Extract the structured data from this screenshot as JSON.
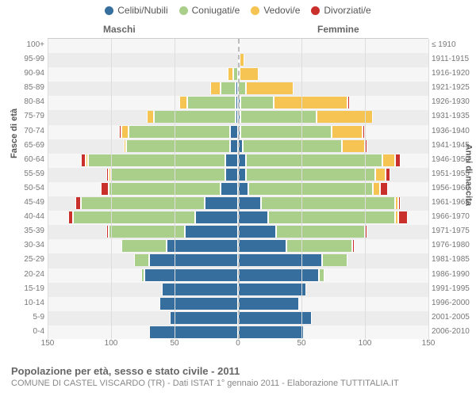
{
  "chart": {
    "type": "population-pyramid",
    "legend": [
      {
        "label": "Celibi/Nubili",
        "color": "#366f9e"
      },
      {
        "label": "Coniugati/e",
        "color": "#a9cf8a"
      },
      {
        "label": "Vedovi/e",
        "color": "#f6c453"
      },
      {
        "label": "Divorziati/e",
        "color": "#c9302c"
      }
    ],
    "headers": {
      "male": "Maschi",
      "female": "Femmine"
    },
    "ylabels": {
      "left": "Fasce di età",
      "right": "Anni di nascita"
    },
    "xaxis": {
      "ticks": [
        150,
        100,
        50,
        0,
        50,
        100,
        150
      ],
      "max": 150
    },
    "plot": {
      "background": "#f6f6f6",
      "alt_row_background": "#ececec",
      "grid_color": "#dddddd",
      "centerline_color": "#bbbbbb"
    },
    "footer": {
      "title": "Popolazione per età, sesso e stato civile - 2011",
      "subtitle": "COMUNE DI CASTEL VISCARDO (TR) - Dati ISTAT 1° gennaio 2011 - Elaborazione TUTTITALIA.IT"
    },
    "rows": [
      {
        "age": "100+",
        "birth": "≤ 1910",
        "m": [
          0,
          0,
          0,
          0
        ],
        "f": [
          0,
          0,
          1,
          0
        ]
      },
      {
        "age": "95-99",
        "birth": "1911-1915",
        "m": [
          0,
          0,
          0,
          0
        ],
        "f": [
          1,
          0,
          4,
          0
        ]
      },
      {
        "age": "90-94",
        "birth": "1916-1920",
        "m": [
          0,
          4,
          4,
          0
        ],
        "f": [
          0,
          1,
          15,
          0
        ]
      },
      {
        "age": "85-89",
        "birth": "1921-1925",
        "m": [
          2,
          12,
          8,
          0
        ],
        "f": [
          0,
          6,
          38,
          0
        ]
      },
      {
        "age": "80-84",
        "birth": "1926-1930",
        "m": [
          2,
          38,
          6,
          0
        ],
        "f": [
          2,
          26,
          58,
          2
        ]
      },
      {
        "age": "75-79",
        "birth": "1931-1935",
        "m": [
          2,
          64,
          6,
          0
        ],
        "f": [
          2,
          60,
          44,
          0
        ]
      },
      {
        "age": "70-74",
        "birth": "1936-1940",
        "m": [
          6,
          80,
          6,
          2
        ],
        "f": [
          2,
          72,
          24,
          2
        ]
      },
      {
        "age": "65-69",
        "birth": "1941-1945",
        "m": [
          6,
          82,
          2,
          0
        ],
        "f": [
          4,
          78,
          18,
          2
        ]
      },
      {
        "age": "60-64",
        "birth": "1946-1950",
        "m": [
          10,
          108,
          2,
          4
        ],
        "f": [
          6,
          108,
          10,
          4
        ]
      },
      {
        "age": "55-59",
        "birth": "1951-1955",
        "m": [
          10,
          90,
          2,
          2
        ],
        "f": [
          6,
          102,
          8,
          4
        ]
      },
      {
        "age": "50-54",
        "birth": "1956-1960",
        "m": [
          14,
          88,
          0,
          6
        ],
        "f": [
          8,
          98,
          6,
          6
        ]
      },
      {
        "age": "45-49",
        "birth": "1961-1965",
        "m": [
          26,
          98,
          0,
          4
        ],
        "f": [
          18,
          106,
          2,
          2
        ]
      },
      {
        "age": "40-44",
        "birth": "1966-1970",
        "m": [
          34,
          96,
          0,
          4
        ],
        "f": [
          24,
          100,
          2,
          8
        ]
      },
      {
        "age": "35-39",
        "birth": "1971-1975",
        "m": [
          42,
          60,
          0,
          2
        ],
        "f": [
          30,
          70,
          0,
          2
        ]
      },
      {
        "age": "30-34",
        "birth": "1976-1980",
        "m": [
          56,
          36,
          0,
          0
        ],
        "f": [
          38,
          52,
          0,
          2
        ]
      },
      {
        "age": "25-29",
        "birth": "1981-1985",
        "m": [
          70,
          12,
          0,
          0
        ],
        "f": [
          66,
          20,
          0,
          0
        ]
      },
      {
        "age": "20-24",
        "birth": "1986-1990",
        "m": [
          74,
          2,
          0,
          0
        ],
        "f": [
          64,
          4,
          0,
          0
        ]
      },
      {
        "age": "15-19",
        "birth": "1991-1995",
        "m": [
          60,
          0,
          0,
          0
        ],
        "f": [
          54,
          0,
          0,
          0
        ]
      },
      {
        "age": "10-14",
        "birth": "1996-2000",
        "m": [
          62,
          0,
          0,
          0
        ],
        "f": [
          48,
          0,
          0,
          0
        ]
      },
      {
        "age": "5-9",
        "birth": "2001-2005",
        "m": [
          54,
          0,
          0,
          0
        ],
        "f": [
          58,
          0,
          0,
          0
        ]
      },
      {
        "age": "0-4",
        "birth": "2006-2010",
        "m": [
          70,
          0,
          0,
          0
        ],
        "f": [
          52,
          0,
          0,
          0
        ]
      }
    ]
  }
}
